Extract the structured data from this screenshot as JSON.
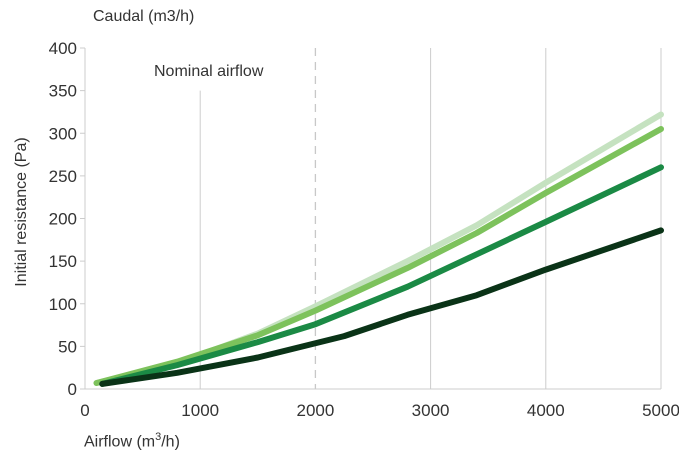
{
  "chart_data": {
    "type": "line",
    "top_label": "Caudal (m3/h)",
    "xlabel_prefix": "Airflow (m",
    "xlabel_sup": "3",
    "xlabel_suffix": "/h)",
    "ylabel": "Initial resistance (Pa)",
    "xlim": [
      0,
      5000
    ],
    "ylim": [
      0,
      400
    ],
    "x_ticks": [
      "0",
      "1000",
      "2000",
      "3000",
      "4000",
      "5000"
    ],
    "y_ticks": [
      "0",
      "50",
      "100",
      "150",
      "200",
      "250",
      "300",
      "350",
      "400"
    ],
    "grid": "vertical",
    "annotation": {
      "text": "Nominal airflow",
      "x": 2000
    },
    "colors": {
      "grid": "#cccccc",
      "axis": "#cccccc",
      "nominal_line": "#c8c8c8"
    },
    "series": [
      {
        "color": "#c5e2c0",
        "points": [
          [
            100,
            7
          ],
          [
            800,
            30
          ],
          [
            1500,
            65
          ],
          [
            2000,
            97
          ],
          [
            2800,
            150
          ],
          [
            3400,
            192
          ],
          [
            4000,
            242
          ],
          [
            5000,
            322
          ]
        ]
      },
      {
        "color": "#7dc25c",
        "points": [
          [
            100,
            7
          ],
          [
            800,
            32
          ],
          [
            1500,
            63
          ],
          [
            2000,
            92
          ],
          [
            2800,
            142
          ],
          [
            3400,
            183
          ],
          [
            4000,
            230
          ],
          [
            5000,
            305
          ]
        ]
      },
      {
        "color": "#1b8a45",
        "points": [
          [
            150,
            6
          ],
          [
            800,
            28
          ],
          [
            1500,
            55
          ],
          [
            2000,
            76
          ],
          [
            2800,
            120
          ],
          [
            3400,
            158
          ],
          [
            4000,
            196
          ],
          [
            5000,
            260
          ]
        ]
      },
      {
        "color": "#0a3317",
        "points": [
          [
            150,
            6
          ],
          [
            800,
            19
          ],
          [
            1500,
            37
          ],
          [
            2250,
            62
          ],
          [
            2800,
            87
          ],
          [
            3400,
            110
          ],
          [
            4000,
            140
          ],
          [
            5000,
            186
          ]
        ]
      }
    ]
  }
}
